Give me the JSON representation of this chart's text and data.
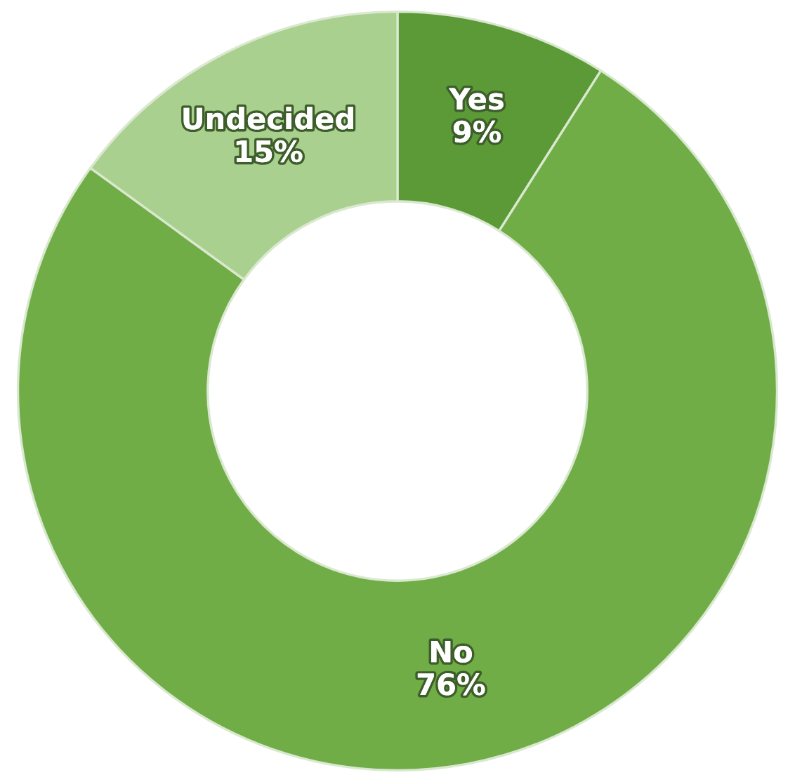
{
  "chart_data": {
    "type": "donut",
    "categories": [
      "Yes",
      "No",
      "Undecided"
    ],
    "values": [
      9,
      76,
      15
    ],
    "value_labels": [
      "9%",
      "76%",
      "15%"
    ],
    "colors": [
      "#5b9a36",
      "#70ad47",
      "#a9d08e"
    ]
  }
}
